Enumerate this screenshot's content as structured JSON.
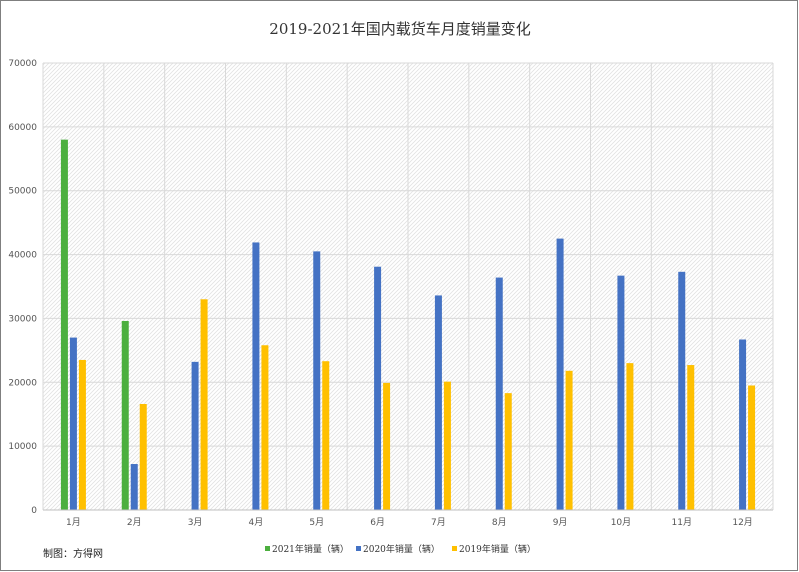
{
  "credit": "制图：方得网",
  "colors": {
    "series_2021": "#4CAF3F",
    "series_2020": "#4472C4",
    "series_2019": "#FFC000",
    "grid": "#d9d9d9",
    "border": "#7f7f7f"
  },
  "chart_data": {
    "type": "bar",
    "title": "2019-2021年国内载货车月度销量变化",
    "xlabel": "",
    "ylabel": "",
    "ylim": [
      0,
      70000
    ],
    "yticks": [
      "0",
      "10000",
      "20000",
      "30000",
      "40000",
      "50000",
      "60000",
      "70000"
    ],
    "grid": true,
    "legend_position": "bottom",
    "categories": [
      "1月",
      "2月",
      "3月",
      "4月",
      "5月",
      "6月",
      "7月",
      "8月",
      "9月",
      "10月",
      "11月",
      "12月"
    ],
    "series": [
      {
        "name": "2021年销量（辆）",
        "values": [
          58000,
          29600,
          null,
          null,
          null,
          null,
          null,
          null,
          null,
          null,
          null,
          null
        ]
      },
      {
        "name": "2020年销量（辆）",
        "values": [
          27000,
          7200,
          23200,
          41900,
          40500,
          38100,
          33600,
          36400,
          42500,
          36700,
          37300,
          26700
        ]
      },
      {
        "name": "2019年销量（辆）",
        "values": [
          23500,
          16600,
          33000,
          25800,
          23300,
          19900,
          20100,
          18300,
          21800,
          23000,
          22700,
          19500
        ]
      }
    ]
  }
}
